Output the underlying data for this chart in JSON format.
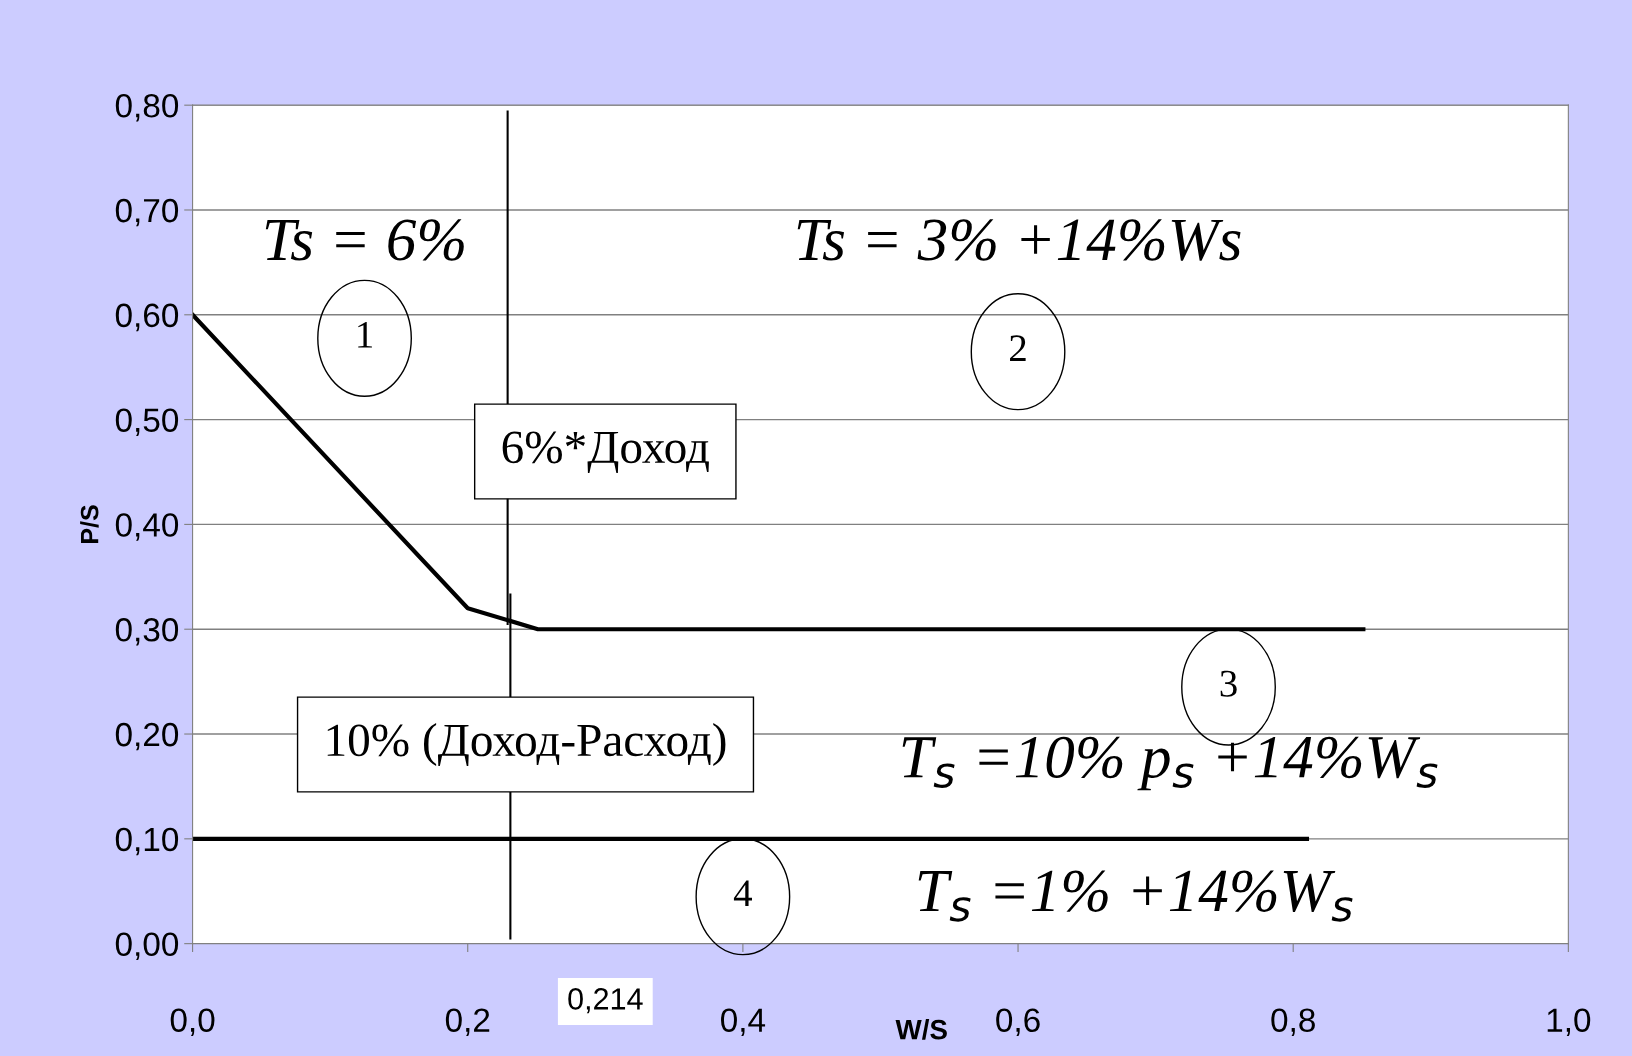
{
  "chart_data": {
    "type": "line",
    "xlabel": "W/S",
    "ylabel": "P/S",
    "series": [
      {
        "color": "#000000",
        "x": [
          0.0,
          0.2,
          0.251,
          0.851
        ],
        "values": [
          0.6,
          0.32,
          0.3,
          0.3
        ]
      },
      {
        "color": "#000000",
        "x": [
          0.0,
          0.81
        ],
        "values": [
          0.1,
          0.1
        ]
      },
      {
        "color": "#000000",
        "x": [
          0.229,
          0.229,
          null,
          0.231,
          0.231
        ],
        "values": [
          0.794,
          0.305,
          null,
          0.333,
          0.005
        ]
      }
    ],
    "xlim": [
      0,
      1.0
    ],
    "ylim": [
      0,
      0.8
    ],
    "xticks": [
      {
        "value": 0,
        "label": "0,0"
      },
      {
        "value": 0.2,
        "label": "0,2"
      },
      {
        "value": 0.4,
        "label": "0,4"
      },
      {
        "value": 0.6,
        "label": "0,6"
      },
      {
        "value": 0.8,
        "label": "0,8"
      },
      {
        "value": 1.0,
        "label": "1,0"
      }
    ],
    "yticks": [
      {
        "value": 0,
        "label": "0,00"
      },
      {
        "value": 0.1,
        "label": "0,10"
      },
      {
        "value": 0.2,
        "label": "0,20"
      },
      {
        "value": 0.3,
        "label": "0,30"
      },
      {
        "value": 0.4,
        "label": "0,40"
      },
      {
        "value": 0.5,
        "label": "0,50"
      },
      {
        "value": 0.6,
        "label": "0,60"
      },
      {
        "value": 0.7,
        "label": "0,70"
      },
      {
        "value": 0.8,
        "label": "0,80"
      }
    ],
    "grid": "y",
    "legend": false,
    "annotations": [
      "Ts = 6%",
      "Ts = 3% +14%Ws",
      "1",
      "2",
      "3",
      "4",
      "6%*Доход",
      "10% (Доход-Расход)",
      "T$_{s}$ =10% p$_{s}$ +14%W$_{s}$",
      "T$_{s}$ =1% +14%W$_{s}$",
      "0,214"
    ]
  }
}
